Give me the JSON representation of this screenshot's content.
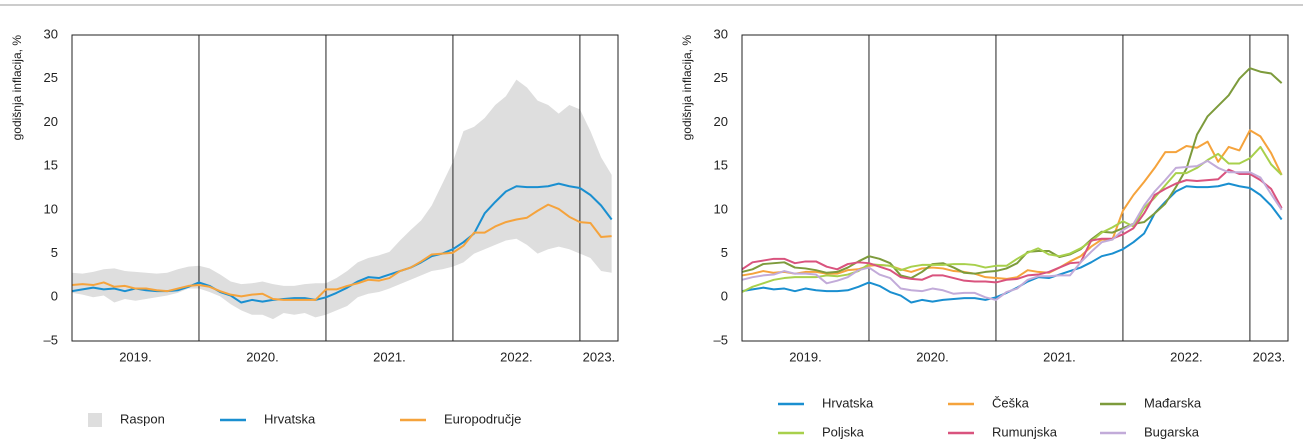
{
  "chart_data": [
    {
      "type": "line",
      "ylabel": "godišnja inflacija, %",
      "x": [
        2019,
        2019.083,
        2019.167,
        2019.25,
        2019.333,
        2019.417,
        2019.5,
        2019.583,
        2019.667,
        2019.75,
        2019.833,
        2019.917,
        2020,
        2020.083,
        2020.167,
        2020.25,
        2020.333,
        2020.417,
        2020.5,
        2020.583,
        2020.667,
        2020.75,
        2020.833,
        2020.917,
        2021,
        2021.083,
        2021.167,
        2021.25,
        2021.333,
        2021.417,
        2021.5,
        2021.583,
        2021.667,
        2021.75,
        2021.833,
        2021.917,
        2022,
        2022.083,
        2022.167,
        2022.25,
        2022.333,
        2022.417,
        2022.5,
        2022.583,
        2022.667,
        2022.75,
        2022.833,
        2022.917,
        2023,
        2023.083,
        2023.167,
        2023.25
      ],
      "xlim": [
        2019,
        2023.3
      ],
      "xticks": [
        {
          "value": 2019.5,
          "label": "2019."
        },
        {
          "value": 2020.5,
          "label": "2020."
        },
        {
          "value": 2021.5,
          "label": "2021."
        },
        {
          "value": 2022.5,
          "label": "2022."
        },
        {
          "value": 2023.15,
          "label": "2023."
        }
      ],
      "xgrid": [
        2020,
        2021,
        2022,
        2023
      ],
      "ylim": [
        -5,
        30
      ],
      "yticks": [
        {
          "value": -5,
          "label": "–5"
        },
        0,
        5,
        10,
        15,
        20,
        25,
        30
      ],
      "band": {
        "name": "Raspon",
        "color": "#dedede",
        "low": [
          0.5,
          0.3,
          0.0,
          0.2,
          -0.6,
          -0.2,
          -0.4,
          -0.2,
          0.0,
          0.2,
          0.5,
          1.0,
          1.0,
          0.6,
          0.1,
          -0.8,
          -1.5,
          -2.0,
          -2.0,
          -2.5,
          -1.8,
          -2.0,
          -1.8,
          -2.3,
          -2.0,
          -1.5,
          -1.0,
          0.0,
          0.4,
          0.6,
          1.0,
          1.5,
          2.0,
          2.5,
          3.0,
          3.2,
          3.5,
          4.0,
          5.0,
          5.5,
          6.0,
          6.5,
          6.7,
          6.0,
          5.0,
          5.5,
          5.8,
          5.5,
          5.0,
          4.5,
          3.0,
          2.8
        ],
        "high": [
          2.8,
          2.7,
          2.9,
          3.2,
          3.3,
          3.0,
          2.9,
          2.8,
          2.7,
          2.8,
          3.2,
          3.5,
          3.6,
          3.3,
          2.6,
          1.8,
          1.5,
          1.6,
          1.8,
          1.5,
          1.3,
          1.3,
          1.5,
          1.6,
          1.6,
          2.2,
          3.0,
          4.0,
          4.5,
          4.8,
          5.2,
          6.5,
          7.7,
          8.8,
          10.5,
          13.0,
          15.5,
          19.0,
          19.5,
          20.5,
          22.0,
          23.0,
          24.9,
          24.0,
          22.5,
          22.0,
          21.0,
          22.0,
          21.5,
          19.0,
          16.0,
          14.0
        ]
      },
      "series": [
        {
          "name": "Hrvatska",
          "color": "#1a8fd0",
          "values": [
            0.7,
            0.9,
            1.1,
            0.9,
            1.0,
            0.7,
            1.0,
            0.8,
            0.7,
            0.7,
            0.8,
            1.2,
            1.7,
            1.3,
            0.6,
            0.2,
            -0.6,
            -0.3,
            -0.5,
            -0.3,
            -0.2,
            -0.1,
            -0.1,
            -0.3,
            0.0,
            0.5,
            1.1,
            1.8,
            2.3,
            2.2,
            2.6,
            3.0,
            3.4,
            4.0,
            4.7,
            5.0,
            5.5,
            6.3,
            7.3,
            9.6,
            10.9,
            12.1,
            12.7,
            12.6,
            12.6,
            12.7,
            13.0,
            12.7,
            12.5,
            11.7,
            10.5,
            8.9
          ]
        },
        {
          "name": "Europodručje",
          "color": "#f5a33c",
          "values": [
            1.4,
            1.5,
            1.4,
            1.7,
            1.2,
            1.3,
            1.0,
            1.0,
            0.8,
            0.7,
            1.0,
            1.3,
            1.4,
            1.2,
            0.7,
            0.3,
            0.1,
            0.3,
            0.4,
            -0.2,
            -0.3,
            -0.3,
            -0.3,
            -0.3,
            0.9,
            0.9,
            1.3,
            1.6,
            2.0,
            1.9,
            2.2,
            3.0,
            3.4,
            4.1,
            4.9,
            5.0,
            5.1,
            5.9,
            7.4,
            7.4,
            8.1,
            8.6,
            8.9,
            9.1,
            9.9,
            10.6,
            10.1,
            9.2,
            8.6,
            8.5,
            6.9,
            7.0
          ]
        }
      ]
    },
    {
      "type": "line",
      "ylabel": "godišnja inflacija, %",
      "x": [
        2019,
        2019.083,
        2019.167,
        2019.25,
        2019.333,
        2019.417,
        2019.5,
        2019.583,
        2019.667,
        2019.75,
        2019.833,
        2019.917,
        2020,
        2020.083,
        2020.167,
        2020.25,
        2020.333,
        2020.417,
        2020.5,
        2020.583,
        2020.667,
        2020.75,
        2020.833,
        2020.917,
        2021,
        2021.083,
        2021.167,
        2021.25,
        2021.333,
        2021.417,
        2021.5,
        2021.583,
        2021.667,
        2021.75,
        2021.833,
        2021.917,
        2022,
        2022.083,
        2022.167,
        2022.25,
        2022.333,
        2022.417,
        2022.5,
        2022.583,
        2022.667,
        2022.75,
        2022.833,
        2022.917,
        2023,
        2023.083,
        2023.167,
        2023.25
      ],
      "xlim": [
        2019,
        2023.3
      ],
      "xticks": [
        {
          "value": 2019.5,
          "label": "2019."
        },
        {
          "value": 2020.5,
          "label": "2020."
        },
        {
          "value": 2021.5,
          "label": "2021."
        },
        {
          "value": 2022.5,
          "label": "2022."
        },
        {
          "value": 2023.15,
          "label": "2023."
        }
      ],
      "xgrid": [
        2020,
        2021,
        2022,
        2023
      ],
      "ylim": [
        -5,
        30
      ],
      "yticks": [
        {
          "value": -5,
          "label": "–5"
        },
        0,
        5,
        10,
        15,
        20,
        25,
        30
      ],
      "series": [
        {
          "name": "Hrvatska",
          "color": "#1a8fd0",
          "values": [
            0.7,
            0.9,
            1.1,
            0.9,
            1.0,
            0.7,
            1.0,
            0.8,
            0.7,
            0.7,
            0.8,
            1.2,
            1.7,
            1.3,
            0.6,
            0.2,
            -0.6,
            -0.3,
            -0.5,
            -0.3,
            -0.2,
            -0.1,
            -0.1,
            -0.3,
            0.0,
            0.5,
            1.1,
            1.8,
            2.3,
            2.2,
            2.6,
            3.0,
            3.4,
            4.0,
            4.7,
            5.0,
            5.5,
            6.3,
            7.3,
            9.6,
            10.9,
            12.1,
            12.7,
            12.6,
            12.6,
            12.7,
            13.0,
            12.7,
            12.5,
            11.7,
            10.5,
            8.9
          ]
        },
        {
          "name": "Češka",
          "color": "#f5a33c",
          "values": [
            2.5,
            2.7,
            3.0,
            2.8,
            2.9,
            2.7,
            2.9,
            2.9,
            2.7,
            2.7,
            3.1,
            3.2,
            3.6,
            3.7,
            3.6,
            3.2,
            2.9,
            3.3,
            3.4,
            3.3,
            3.0,
            2.9,
            2.7,
            2.3,
            2.2,
            2.1,
            2.3,
            3.1,
            2.9,
            2.8,
            3.4,
            4.1,
            4.7,
            5.8,
            6.6,
            6.6,
            9.9,
            11.7,
            13.2,
            14.8,
            16.6,
            16.6,
            17.3,
            17.1,
            17.8,
            15.5,
            17.2,
            16.8,
            19.1,
            18.4,
            16.5,
            14.0
          ]
        },
        {
          "name": "Mađarska",
          "color": "#7d9b3c",
          "values": [
            2.9,
            3.2,
            3.8,
            3.9,
            4.0,
            3.4,
            3.3,
            3.1,
            2.8,
            2.9,
            3.4,
            4.1,
            4.7,
            4.4,
            3.9,
            2.5,
            2.2,
            2.9,
            3.8,
            3.9,
            3.4,
            2.8,
            2.7,
            2.9,
            3.0,
            3.3,
            3.9,
            5.2,
            5.3,
            5.3,
            4.6,
            4.9,
            5.5,
            6.6,
            7.5,
            7.4,
            7.9,
            8.4,
            8.6,
            9.6,
            10.7,
            12.6,
            14.7,
            18.6,
            20.7,
            21.9,
            23.1,
            25.0,
            26.2,
            25.8,
            25.6,
            24.5
          ]
        },
        {
          "name": "Poljska",
          "color": "#a8d04c",
          "values": [
            0.6,
            1.2,
            1.6,
            2.0,
            2.2,
            2.3,
            2.3,
            2.3,
            2.5,
            2.4,
            2.6,
            3.0,
            3.8,
            3.7,
            3.6,
            3.1,
            3.5,
            3.7,
            3.7,
            3.7,
            3.8,
            3.8,
            3.7,
            3.4,
            3.6,
            3.6,
            4.4,
            5.1,
            5.6,
            4.9,
            4.7,
            5.0,
            5.6,
            6.4,
            7.4,
            8.0,
            8.7,
            8.1,
            10.2,
            11.4,
            12.8,
            14.2,
            14.2,
            14.8,
            15.7,
            16.4,
            15.3,
            15.3,
            15.9,
            17.2,
            15.2,
            14.0
          ]
        },
        {
          "name": "Rumunjska",
          "color": "#d9537e",
          "values": [
            3.2,
            4.0,
            4.2,
            4.4,
            4.4,
            3.9,
            4.1,
            4.1,
            3.5,
            3.2,
            3.8,
            4.0,
            3.9,
            3.5,
            3.1,
            2.3,
            2.1,
            2.0,
            2.5,
            2.5,
            2.2,
            1.9,
            1.8,
            1.8,
            1.7,
            2.0,
            2.1,
            2.5,
            2.6,
            2.9,
            3.4,
            3.9,
            4.0,
            6.5,
            6.7,
            6.7,
            7.2,
            7.9,
            9.6,
            11.7,
            12.4,
            13.0,
            13.4,
            13.3,
            13.4,
            13.5,
            14.6,
            14.1,
            14.1,
            13.4,
            12.4,
            10.2
          ]
        },
        {
          "name": "Bugarska",
          "color": "#c2abd9",
          "values": [
            2.0,
            2.3,
            2.5,
            2.6,
            3.0,
            2.7,
            2.7,
            2.6,
            1.6,
            1.9,
            2.3,
            3.1,
            3.4,
            2.6,
            2.2,
            1.0,
            0.8,
            0.7,
            1.0,
            0.8,
            0.4,
            0.5,
            0.5,
            0.0,
            -0.3,
            0.6,
            1.0,
            2.0,
            2.4,
            2.4,
            2.5,
            2.5,
            4.0,
            5.2,
            6.3,
            6.6,
            7.7,
            8.4,
            10.5,
            12.1,
            13.4,
            14.8,
            14.9,
            15.0,
            15.6,
            14.8,
            14.3,
            14.3,
            14.3,
            13.7,
            11.8,
            10.0
          ]
        }
      ]
    }
  ]
}
